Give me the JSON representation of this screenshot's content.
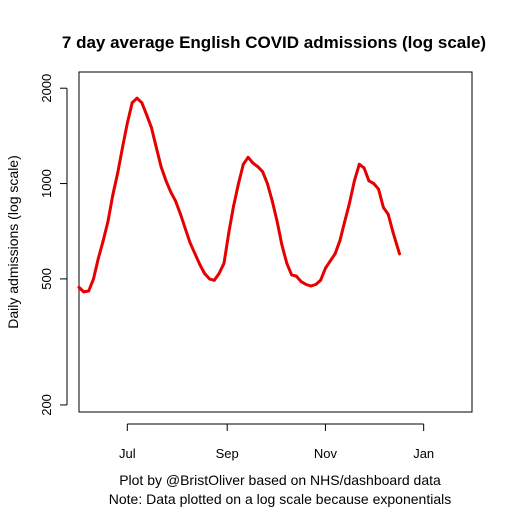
{
  "chart_data": {
    "type": "line",
    "title": "7 day average English COVID admissions (log scale)",
    "xlabel": "",
    "ylabel": "Daily admissions (log scale)",
    "y_scale": "log",
    "ylim": [
      190,
      2250
    ],
    "xlim": [
      "2023-06-01",
      "2024-01-31"
    ],
    "y_ticks": [
      {
        "value": 200,
        "label": "200"
      },
      {
        "value": 500,
        "label": "500"
      },
      {
        "value": 1000,
        "label": "1000"
      },
      {
        "value": 2000,
        "label": "2000"
      }
    ],
    "x_ticks": [
      {
        "value": "2023-07-01",
        "label": "Jul"
      },
      {
        "value": "2023-09-01",
        "label": "Sep"
      },
      {
        "value": "2023-11-01",
        "label": "Nov"
      },
      {
        "value": "2024-01-01",
        "label": "Jan"
      }
    ],
    "grid": false,
    "legend": "none",
    "colors": {
      "line": "#e60000",
      "axes": "#000000",
      "background": "#ffffff"
    },
    "series": [
      {
        "color": "#e60000",
        "points": [
          [
            "2023-06-01",
            470
          ],
          [
            "2023-06-04",
            455
          ],
          [
            "2023-06-07",
            458
          ],
          [
            "2023-06-10",
            500
          ],
          [
            "2023-06-13",
            580
          ],
          [
            "2023-06-16",
            660
          ],
          [
            "2023-06-19",
            760
          ],
          [
            "2023-06-22",
            920
          ],
          [
            "2023-06-25",
            1080
          ],
          [
            "2023-06-28",
            1300
          ],
          [
            "2023-07-01",
            1550
          ],
          [
            "2023-07-04",
            1800
          ],
          [
            "2023-07-07",
            1860
          ],
          [
            "2023-07-10",
            1800
          ],
          [
            "2023-07-13",
            1650
          ],
          [
            "2023-07-16",
            1500
          ],
          [
            "2023-07-19",
            1300
          ],
          [
            "2023-07-22",
            1130
          ],
          [
            "2023-07-25",
            1020
          ],
          [
            "2023-07-28",
            940
          ],
          [
            "2023-07-31",
            880
          ],
          [
            "2023-08-03",
            800
          ],
          [
            "2023-08-06",
            720
          ],
          [
            "2023-08-09",
            650
          ],
          [
            "2023-08-12",
            600
          ],
          [
            "2023-08-15",
            555
          ],
          [
            "2023-08-18",
            520
          ],
          [
            "2023-08-21",
            500
          ],
          [
            "2023-08-24",
            495
          ],
          [
            "2023-08-27",
            520
          ],
          [
            "2023-08-30",
            560
          ],
          [
            "2023-09-02",
            700
          ],
          [
            "2023-09-05",
            850
          ],
          [
            "2023-09-08",
            1000
          ],
          [
            "2023-09-11",
            1150
          ],
          [
            "2023-09-14",
            1210
          ],
          [
            "2023-09-17",
            1160
          ],
          [
            "2023-09-20",
            1130
          ],
          [
            "2023-09-23",
            1090
          ],
          [
            "2023-09-26",
            1000
          ],
          [
            "2023-09-29",
            880
          ],
          [
            "2023-10-02",
            760
          ],
          [
            "2023-10-05",
            640
          ],
          [
            "2023-10-08",
            560
          ],
          [
            "2023-10-11",
            515
          ],
          [
            "2023-10-14",
            510
          ],
          [
            "2023-10-17",
            490
          ],
          [
            "2023-10-20",
            480
          ],
          [
            "2023-10-23",
            475
          ],
          [
            "2023-10-26",
            480
          ],
          [
            "2023-10-29",
            495
          ],
          [
            "2023-11-01",
            540
          ],
          [
            "2023-11-04",
            570
          ],
          [
            "2023-11-07",
            600
          ],
          [
            "2023-11-10",
            660
          ],
          [
            "2023-11-13",
            760
          ],
          [
            "2023-11-16",
            870
          ],
          [
            "2023-11-19",
            1020
          ],
          [
            "2023-11-22",
            1150
          ],
          [
            "2023-11-25",
            1120
          ],
          [
            "2023-11-28",
            1020
          ],
          [
            "2023-12-01",
            1000
          ],
          [
            "2023-12-04",
            960
          ],
          [
            "2023-12-07",
            840
          ],
          [
            "2023-12-10",
            800
          ],
          [
            "2023-12-13",
            700
          ],
          [
            "2023-12-17",
            600
          ]
        ]
      }
    ],
    "footnotes": [
      "Plot by @BristOliver based on NHS/dashboard data",
      "Note: Data plotted on a log scale because exponentials"
    ]
  }
}
